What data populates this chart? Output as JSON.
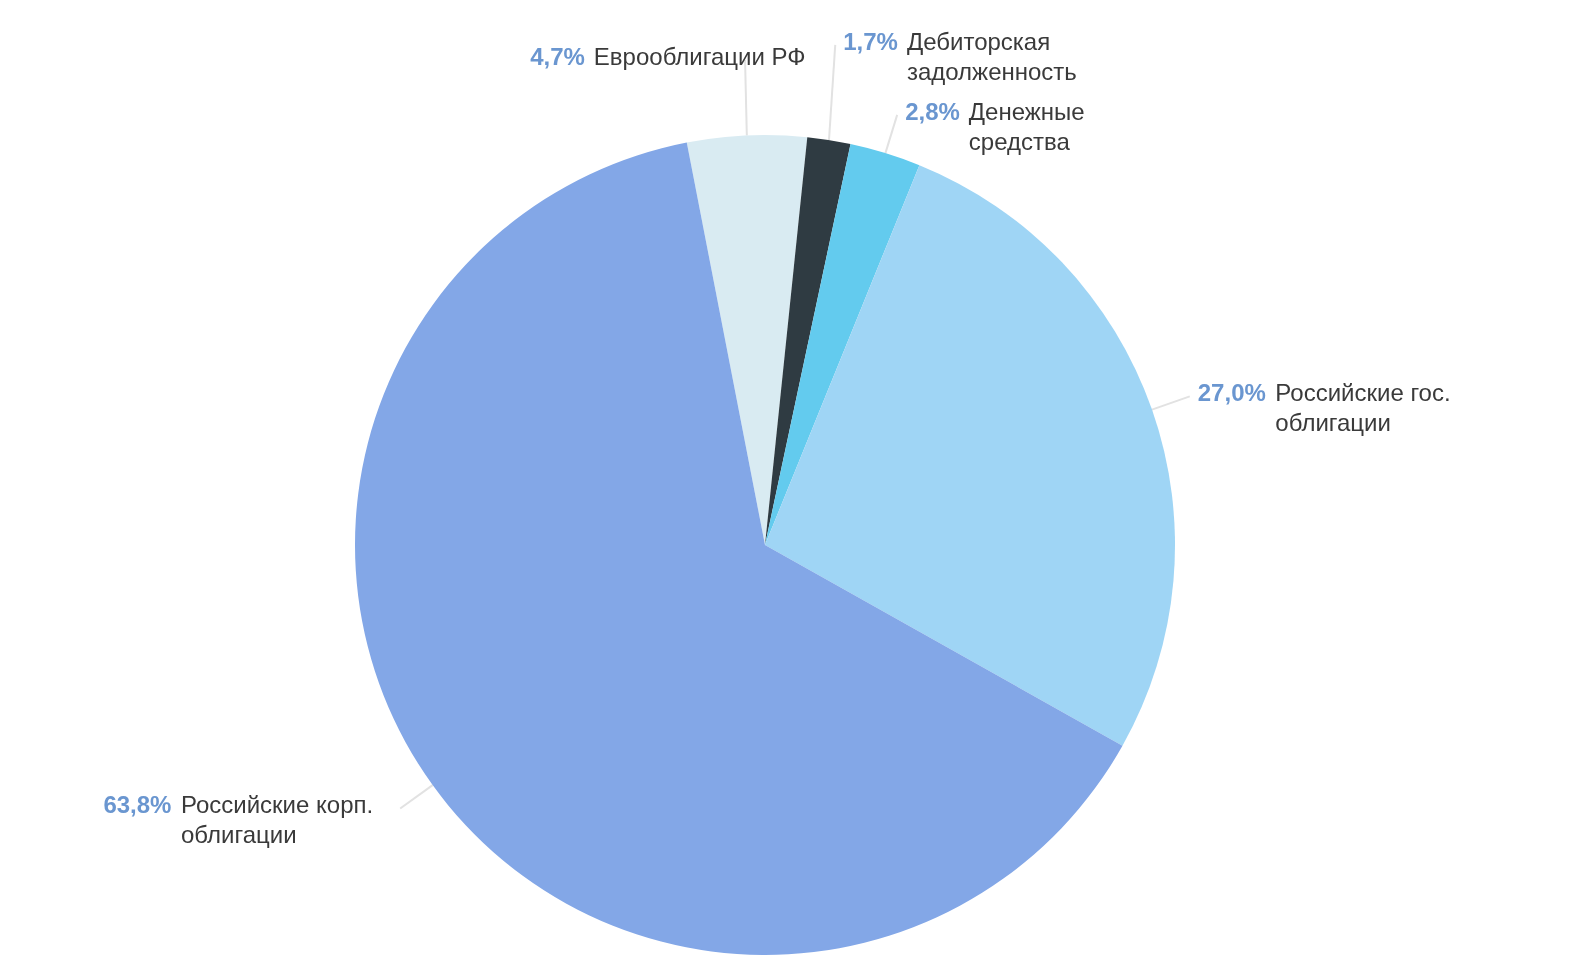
{
  "chart_data": {
    "type": "pie",
    "categories": [
      "Еврооблигации РФ",
      "Дебиторская задолженность",
      "Денежные средства",
      "Российские гос. облигации",
      "Российские корп. облигации"
    ],
    "values": [
      4.7,
      1.7,
      2.8,
      27.0,
      63.8
    ],
    "value_labels": [
      "4,7%",
      "1,7%",
      "2,8%",
      "27,0%",
      "63,8%"
    ],
    "colors": [
      "#d9ebf2",
      "#2f3b42",
      "#63cbee",
      "#9fd5f5",
      "#83a7e7"
    ]
  }
}
